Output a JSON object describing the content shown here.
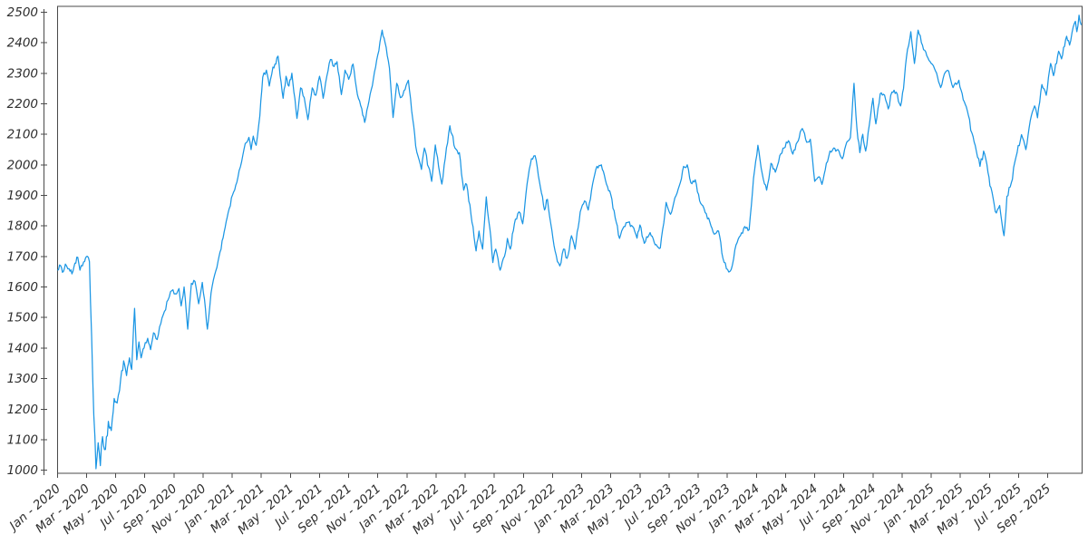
{
  "chart_data": {
    "type": "line",
    "title": "",
    "xlabel": "",
    "ylabel": "",
    "grid": false,
    "legend": false,
    "x_unit": "months since Jan 2020",
    "xlim": [
      0,
      70.35
    ],
    "ylim": [
      990,
      2519
    ],
    "y_ticks": [
      1000,
      1100,
      1200,
      1300,
      1400,
      1500,
      1600,
      1700,
      1800,
      1900,
      2000,
      2100,
      2200,
      2300,
      2400,
      2500
    ],
    "x_tick_positions": [
      0,
      2,
      4,
      6,
      8,
      10,
      12,
      14,
      16,
      18,
      20,
      22,
      24,
      26,
      28,
      30,
      32,
      34,
      36,
      38,
      40,
      42,
      44,
      46,
      48,
      50,
      52,
      54,
      56,
      58,
      60,
      62,
      64,
      66,
      68
    ],
    "x_tick_labels": [
      "Jan - 2020",
      "Mar - 2020",
      "May - 2020",
      "Jul - 2020",
      "Sep - 2020",
      "Nov - 2020",
      "Jan - 2021",
      "Mar - 2021",
      "May - 2021",
      "Jul - 2021",
      "Sep - 2021",
      "Nov - 2021",
      "Jan - 2022",
      "Mar - 2022",
      "May - 2022",
      "Jul - 2022",
      "Sep - 2022",
      "Nov - 2022",
      "Jan - 2023",
      "Mar - 2023",
      "May - 2023",
      "Jul - 2023",
      "Sep - 2023",
      "Nov - 2023",
      "Jan - 2024",
      "Mar - 2024",
      "May - 2024",
      "Jul - 2024",
      "Sep - 2024",
      "Nov - 2024",
      "Jan - 2025",
      "Mar - 2025",
      "May - 2025",
      "Jul - 2025",
      "Sep - 2025"
    ],
    "colors": {
      "line": "#1b96e4",
      "axis": "#4a4a4a",
      "tick_label": "#2e2e2e"
    },
    "render_noise": {
      "seed": 1234,
      "step": 0.075,
      "base_amp": 8.5,
      "vol_windows": [
        [
          2.25,
          4.6,
          20
        ],
        [
          24,
          36,
          11
        ],
        [
          62.6,
          66,
          13
        ]
      ]
    },
    "series": [
      {
        "name": "value",
        "points": [
          [
            0,
            1655
          ],
          [
            0.15,
            1672
          ],
          [
            0.35,
            1648
          ],
          [
            0.55,
            1675
          ],
          [
            0.8,
            1660
          ],
          [
            1,
            1643
          ],
          [
            1.2,
            1678
          ],
          [
            1.4,
            1697
          ],
          [
            1.55,
            1655
          ],
          [
            1.8,
            1682
          ],
          [
            2,
            1700
          ],
          [
            2.2,
            1683
          ],
          [
            2.35,
            1440
          ],
          [
            2.5,
            1180
          ],
          [
            2.65,
            1005
          ],
          [
            2.8,
            1090
          ],
          [
            2.95,
            1015
          ],
          [
            3.1,
            1110
          ],
          [
            3.3,
            1068
          ],
          [
            3.5,
            1160
          ],
          [
            3.7,
            1130
          ],
          [
            3.9,
            1235
          ],
          [
            4.1,
            1220
          ],
          [
            4.35,
            1300
          ],
          [
            4.55,
            1358
          ],
          [
            4.75,
            1310
          ],
          [
            4.95,
            1368
          ],
          [
            5.1,
            1330
          ],
          [
            5.3,
            1530
          ],
          [
            5.45,
            1362
          ],
          [
            5.6,
            1420
          ],
          [
            5.75,
            1368
          ],
          [
            5.95,
            1400
          ],
          [
            6.2,
            1432
          ],
          [
            6.4,
            1395
          ],
          [
            6.6,
            1450
          ],
          [
            6.85,
            1428
          ],
          [
            7.1,
            1480
          ],
          [
            7.35,
            1520
          ],
          [
            7.6,
            1558
          ],
          [
            7.85,
            1588
          ],
          [
            8.1,
            1578
          ],
          [
            8.35,
            1595
          ],
          [
            8.5,
            1538
          ],
          [
            8.7,
            1600
          ],
          [
            8.95,
            1462
          ],
          [
            9.2,
            1612
          ],
          [
            9.45,
            1618
          ],
          [
            9.7,
            1545
          ],
          [
            9.95,
            1615
          ],
          [
            10.1,
            1560
          ],
          [
            10.3,
            1462
          ],
          [
            10.55,
            1580
          ],
          [
            10.8,
            1640
          ],
          [
            11.1,
            1700
          ],
          [
            11.45,
            1780
          ],
          [
            11.8,
            1857
          ],
          [
            12.1,
            1911
          ],
          [
            12.4,
            1960
          ],
          [
            12.65,
            2010
          ],
          [
            12.9,
            2070
          ],
          [
            13.15,
            2090
          ],
          [
            13.3,
            2050
          ],
          [
            13.45,
            2094
          ],
          [
            13.65,
            2064
          ],
          [
            13.9,
            2160
          ],
          [
            14.1,
            2287
          ],
          [
            14.35,
            2310
          ],
          [
            14.55,
            2258
          ],
          [
            14.8,
            2320
          ],
          [
            15,
            2330
          ],
          [
            15.15,
            2356
          ],
          [
            15.5,
            2218
          ],
          [
            15.7,
            2290
          ],
          [
            15.9,
            2258
          ],
          [
            16.1,
            2300
          ],
          [
            16.45,
            2152
          ],
          [
            16.7,
            2252
          ],
          [
            16.95,
            2220
          ],
          [
            17.2,
            2148
          ],
          [
            17.5,
            2252
          ],
          [
            17.75,
            2228
          ],
          [
            18,
            2290
          ],
          [
            18.25,
            2218
          ],
          [
            18.5,
            2290
          ],
          [
            18.75,
            2345
          ],
          [
            19,
            2322
          ],
          [
            19.2,
            2338
          ],
          [
            19.5,
            2230
          ],
          [
            19.75,
            2310
          ],
          [
            20,
            2280
          ],
          [
            20.3,
            2330
          ],
          [
            20.6,
            2230
          ],
          [
            20.9,
            2184
          ],
          [
            21.1,
            2139
          ],
          [
            21.4,
            2210
          ],
          [
            21.7,
            2282
          ],
          [
            22,
            2360
          ],
          [
            22.3,
            2441
          ],
          [
            22.5,
            2400
          ],
          [
            22.8,
            2317
          ],
          [
            23.05,
            2155
          ],
          [
            23.3,
            2267
          ],
          [
            23.55,
            2220
          ],
          [
            23.8,
            2243
          ],
          [
            24.1,
            2277
          ],
          [
            24.4,
            2150
          ],
          [
            24.6,
            2062
          ],
          [
            25,
            1985
          ],
          [
            25.2,
            2055
          ],
          [
            25.7,
            1946
          ],
          [
            25.95,
            2065
          ],
          [
            26.4,
            1937
          ],
          [
            26.95,
            2128
          ],
          [
            27.3,
            2055
          ],
          [
            27.6,
            2040
          ],
          [
            27.9,
            1917
          ],
          [
            28.1,
            1936
          ],
          [
            28.4,
            1837
          ],
          [
            28.75,
            1718
          ],
          [
            28.95,
            1783
          ],
          [
            29.2,
            1724
          ],
          [
            29.45,
            1895
          ],
          [
            29.7,
            1790
          ],
          [
            29.9,
            1680
          ],
          [
            30.1,
            1724
          ],
          [
            30.4,
            1655
          ],
          [
            30.7,
            1700
          ],
          [
            30.9,
            1759
          ],
          [
            31.1,
            1724
          ],
          [
            31.45,
            1822
          ],
          [
            31.7,
            1846
          ],
          [
            31.95,
            1807
          ],
          [
            32.25,
            1937
          ],
          [
            32.55,
            2020
          ],
          [
            32.8,
            2030
          ],
          [
            33.1,
            1945
          ],
          [
            33.45,
            1852
          ],
          [
            33.65,
            1887
          ],
          [
            33.95,
            1787
          ],
          [
            34.25,
            1704
          ],
          [
            34.5,
            1669
          ],
          [
            34.75,
            1724
          ],
          [
            35,
            1694
          ],
          [
            35.3,
            1768
          ],
          [
            35.55,
            1724
          ],
          [
            35.9,
            1846
          ],
          [
            36.2,
            1882
          ],
          [
            36.45,
            1852
          ],
          [
            36.75,
            1937
          ],
          [
            37.05,
            1995
          ],
          [
            37.35,
            2000
          ],
          [
            37.7,
            1937
          ],
          [
            38,
            1902
          ],
          [
            38.3,
            1827
          ],
          [
            38.6,
            1759
          ],
          [
            38.9,
            1798
          ],
          [
            39.2,
            1812
          ],
          [
            39.5,
            1798
          ],
          [
            39.8,
            1760
          ],
          [
            40,
            1803
          ],
          [
            40.3,
            1743
          ],
          [
            40.7,
            1778
          ],
          [
            41.05,
            1738
          ],
          [
            41.4,
            1728
          ],
          [
            41.8,
            1877
          ],
          [
            42.1,
            1838
          ],
          [
            42.4,
            1892
          ],
          [
            42.7,
            1931
          ],
          [
            43,
            1995
          ],
          [
            43.25,
            2000
          ],
          [
            43.5,
            1941
          ],
          [
            43.8,
            1951
          ],
          [
            44.1,
            1882
          ],
          [
            44.4,
            1857
          ],
          [
            44.8,
            1813
          ],
          [
            45.1,
            1773
          ],
          [
            45.4,
            1783
          ],
          [
            45.7,
            1694
          ],
          [
            46.1,
            1649
          ],
          [
            46.35,
            1672
          ],
          [
            46.6,
            1738
          ],
          [
            46.9,
            1768
          ],
          [
            47.2,
            1798
          ],
          [
            47.5,
            1788
          ],
          [
            47.8,
            1956
          ],
          [
            48.1,
            2064
          ],
          [
            48.4,
            1971
          ],
          [
            48.7,
            1917
          ],
          [
            49,
            2005
          ],
          [
            49.3,
            1976
          ],
          [
            49.6,
            2030
          ],
          [
            49.9,
            2055
          ],
          [
            50.2,
            2079
          ],
          [
            50.5,
            2035
          ],
          [
            50.8,
            2074
          ],
          [
            51.15,
            2119
          ],
          [
            51.45,
            2074
          ],
          [
            51.7,
            2084
          ],
          [
            52,
            1946
          ],
          [
            52.3,
            1961
          ],
          [
            52.5,
            1936
          ],
          [
            52.8,
            2005
          ],
          [
            53.05,
            2045
          ],
          [
            53.3,
            2055
          ],
          [
            53.6,
            2050
          ],
          [
            53.9,
            2020
          ],
          [
            54.2,
            2074
          ],
          [
            54.45,
            2089
          ],
          [
            54.7,
            2267
          ],
          [
            54.9,
            2120
          ],
          [
            55.1,
            2040
          ],
          [
            55.3,
            2100
          ],
          [
            55.5,
            2045
          ],
          [
            55.75,
            2130
          ],
          [
            56,
            2218
          ],
          [
            56.2,
            2134
          ],
          [
            56.5,
            2233
          ],
          [
            56.8,
            2228
          ],
          [
            57.05,
            2183
          ],
          [
            57.3,
            2238
          ],
          [
            57.6,
            2238
          ],
          [
            57.9,
            2193
          ],
          [
            58.1,
            2250
          ],
          [
            58.3,
            2352
          ],
          [
            58.6,
            2436
          ],
          [
            58.85,
            2332
          ],
          [
            59.1,
            2441
          ],
          [
            59.4,
            2392
          ],
          [
            59.7,
            2357
          ],
          [
            60,
            2332
          ],
          [
            60.3,
            2307
          ],
          [
            60.65,
            2253
          ],
          [
            60.9,
            2297
          ],
          [
            61.2,
            2307
          ],
          [
            61.5,
            2253
          ],
          [
            61.9,
            2277
          ],
          [
            62.2,
            2213
          ],
          [
            62.55,
            2163
          ],
          [
            62.8,
            2104
          ],
          [
            63.1,
            2045
          ],
          [
            63.35,
            1995
          ],
          [
            63.6,
            2045
          ],
          [
            63.9,
            1975
          ],
          [
            64.1,
            1926
          ],
          [
            64.4,
            1847
          ],
          [
            64.7,
            1867
          ],
          [
            65,
            1768
          ],
          [
            65.2,
            1897
          ],
          [
            65.5,
            1941
          ],
          [
            65.9,
            2040
          ],
          [
            66.2,
            2099
          ],
          [
            66.5,
            2050
          ],
          [
            66.8,
            2144
          ],
          [
            67.1,
            2193
          ],
          [
            67.3,
            2154
          ],
          [
            67.6,
            2263
          ],
          [
            67.9,
            2228
          ],
          [
            68.2,
            2332
          ],
          [
            68.4,
            2292
          ],
          [
            68.75,
            2372
          ],
          [
            68.95,
            2347
          ],
          [
            69.3,
            2421
          ],
          [
            69.5,
            2392
          ],
          [
            69.75,
            2451
          ],
          [
            69.9,
            2470
          ],
          [
            70,
            2436
          ],
          [
            70.15,
            2490
          ],
          [
            70.3,
            2458
          ]
        ]
      }
    ]
  }
}
